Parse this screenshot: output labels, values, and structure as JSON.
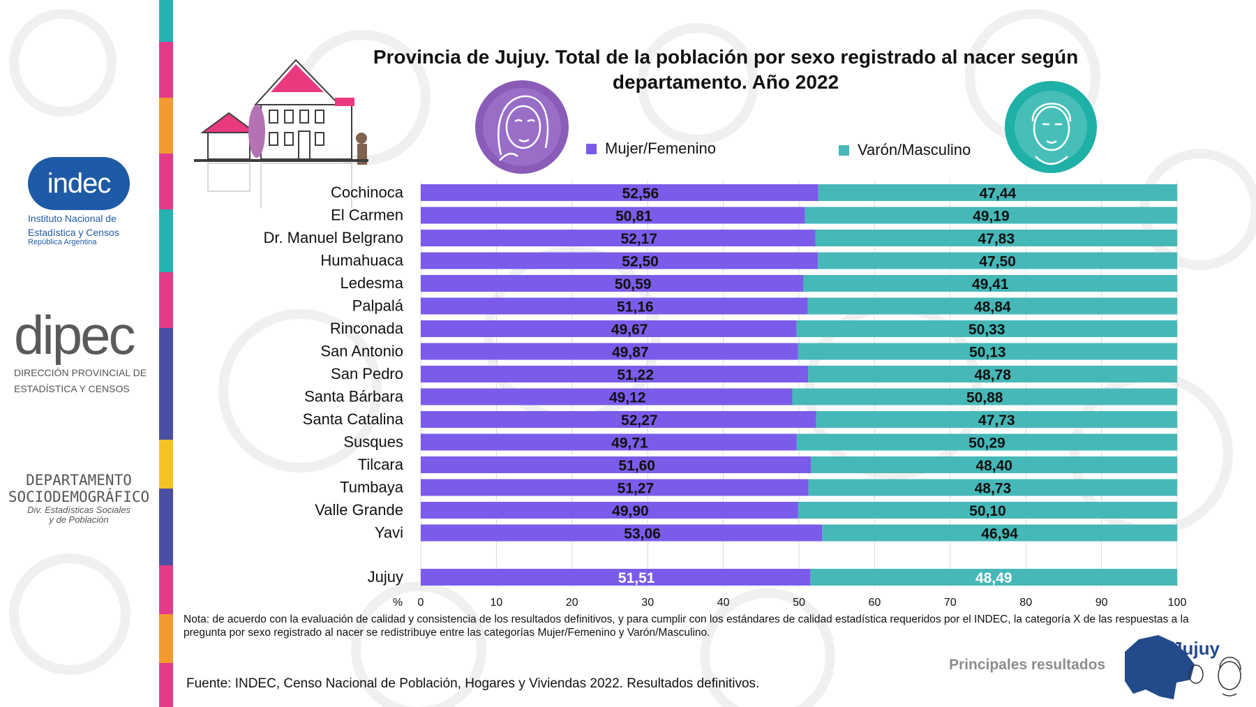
{
  "colors": {
    "mujer": "#7b5bea",
    "varon": "#46b8b8",
    "title": "#111111",
    "grid": "#d9d9d9",
    "indec_blue": "#1f5aa6",
    "sidebar_pink": "#e23b8a",
    "sidebar_teal": "#25b2b2",
    "jujuy_blue": "#234a8a"
  },
  "logos": {
    "indec": {
      "word": "indec",
      "line1": "Instituto Nacional de",
      "line2": "Estadística y Censos",
      "line3": "República Argentina"
    },
    "dipec": {
      "word": "dipec",
      "line1": "DIRECCIÓN PROVINCIAL DE",
      "line2": "ESTADÍSTICA Y CENSOS"
    },
    "depto": {
      "line1": "DEPARTAMENTO",
      "line2": "SOCIODEMOGRÁFICO",
      "line3": "Div. Estadísticas Sociales",
      "line4": "y de Población"
    },
    "jujuy": {
      "word": "Jujuy"
    }
  },
  "icons": [
    "house-illustration-icon",
    "woman-face-icon",
    "man-face-icon",
    "jujuy-map-icon"
  ],
  "chart_data": {
    "type": "bar",
    "stacked": true,
    "orientation": "horizontal",
    "title": "Provincia de Jujuy. Total de la población por sexo registrado al nacer según departamento. Año 2022",
    "categories": [
      "Cochinoca",
      "El Carmen",
      "Dr. Manuel Belgrano",
      "Humahuaca",
      "Ledesma",
      "Palpalá",
      "Rinconada",
      "San Antonio",
      "San Pedro",
      "Santa Bárbara",
      "Santa Catalina",
      "Susques",
      "Tilcara",
      "Tumbaya",
      "Valle Grande",
      "Yavi",
      "Jujuy"
    ],
    "series": [
      {
        "name": "Mujer/Femenino",
        "values": [
          52.56,
          50.81,
          52.17,
          52.5,
          50.59,
          51.16,
          49.67,
          49.87,
          51.22,
          49.12,
          52.27,
          49.71,
          51.6,
          51.27,
          49.9,
          53.06,
          51.51
        ],
        "labels": [
          "52,56",
          "50,81",
          "52,17",
          "52,50",
          "50,59",
          "51,16",
          "49,67",
          "49,87",
          "51,22",
          "49,12",
          "52,27",
          "49,71",
          "51,60",
          "51,27",
          "49,90",
          "53,06",
          "51,51"
        ]
      },
      {
        "name": "Varón/Masculino",
        "values": [
          47.44,
          49.19,
          47.83,
          47.5,
          49.41,
          48.84,
          50.33,
          50.13,
          48.78,
          50.88,
          47.73,
          50.29,
          48.4,
          48.73,
          50.1,
          46.94,
          48.49
        ],
        "labels": [
          "47,44",
          "49,19",
          "47,83",
          "47,50",
          "49,41",
          "48,84",
          "50,33",
          "50,13",
          "48,78",
          "50,88",
          "47,73",
          "50,29",
          "48,40",
          "48,73",
          "50,10",
          "46,94",
          "48,49"
        ]
      }
    ],
    "xlabel": "%",
    "xlim": [
      0,
      100
    ],
    "xticks": [
      0,
      10,
      20,
      30,
      40,
      50,
      60,
      70,
      80,
      90,
      100
    ],
    "grid": true,
    "legend": "top"
  },
  "note": "Nota: de acuerdo con la evaluación de calidad y consistencia de los resultados definitivos, y para cumplir con los estándares de calidad estadística requeridos por el INDEC, la categoría X de las respuestas a la pregunta por sexo registrado al nacer se redistribuye entre las categorías Mujer/Femenino y Varón/Masculino.",
  "source": "Fuente: INDEC, Censo Nacional de Población, Hogares y Viviendas 2022. Resultados definitivos.",
  "footer_label": "Principales resultados"
}
